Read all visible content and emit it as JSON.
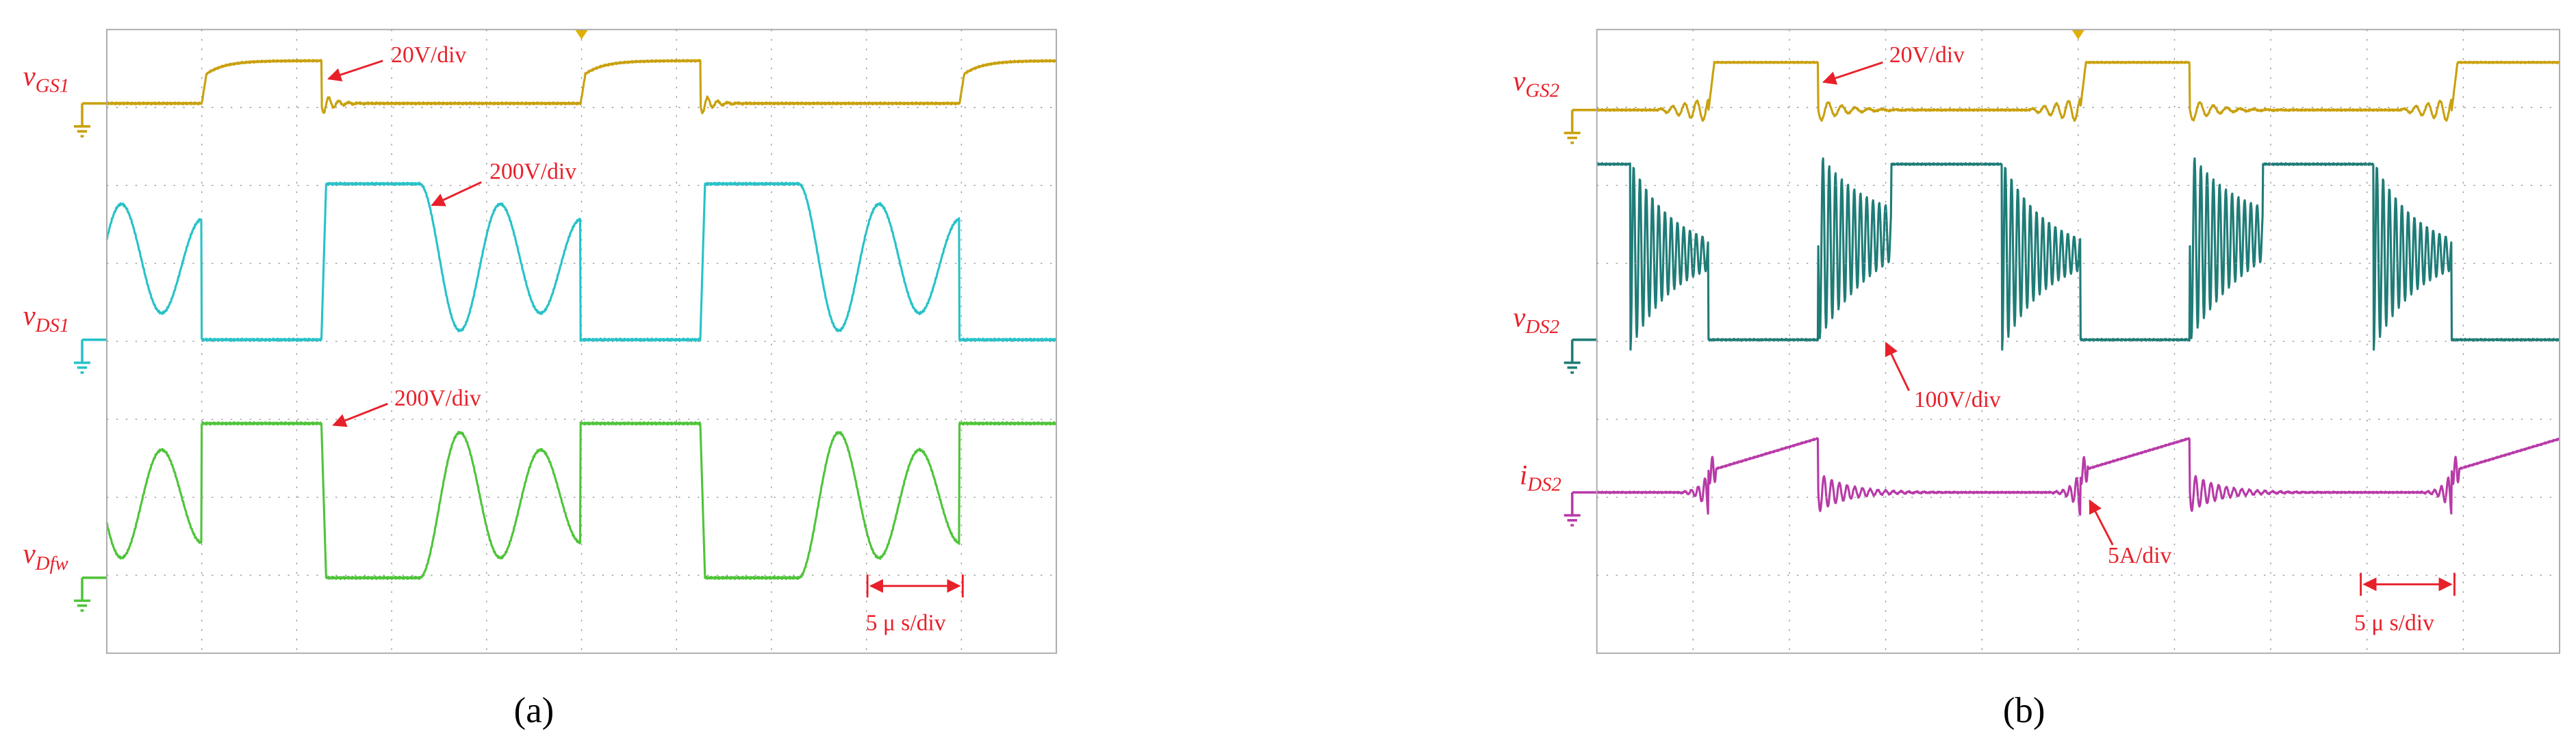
{
  "panels": [
    {
      "caption": "(a)",
      "traces": [
        {
          "symbol": "v",
          "subscript": "GS1"
        },
        {
          "symbol": "v",
          "subscript": "DS1"
        },
        {
          "symbol": "v",
          "subscript": "Dfw"
        }
      ],
      "annotations": [
        "20V/div",
        "200V/div",
        "200V/div"
      ],
      "time_scale": "5 μ s/div"
    },
    {
      "caption": "(b)",
      "traces": [
        {
          "symbol": "v",
          "subscript": "GS2"
        },
        {
          "symbol": "v",
          "subscript": "DS2"
        },
        {
          "symbol": "i",
          "subscript": "DS2"
        }
      ],
      "annotations": [
        "20V/div",
        "100V/div",
        "5A/div"
      ],
      "time_scale": "5 μ s/div"
    }
  ]
}
